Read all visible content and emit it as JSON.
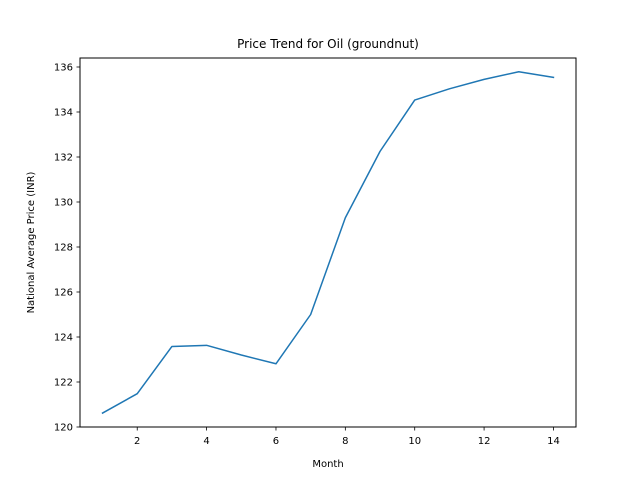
{
  "chart_data": {
    "type": "line",
    "title": "Price Trend for Oil (groundnut)",
    "xlabel": "Month",
    "ylabel": "National Average Price (INR)",
    "x": [
      1,
      2,
      3,
      4,
      5,
      6,
      7,
      8,
      9,
      10,
      11,
      12,
      13,
      14
    ],
    "series": [
      {
        "values": [
          120.62,
          121.48,
          123.58,
          123.63,
          123.2,
          122.81,
          125.0,
          129.3,
          132.25,
          134.53,
          135.03,
          135.45,
          135.79,
          135.54
        ],
        "color": "#1f77b4"
      }
    ],
    "xlim": [
      0.35,
      14.65
    ],
    "ylim": [
      120.0,
      136.4
    ],
    "xticks": [
      2,
      4,
      6,
      8,
      10,
      12,
      14
    ],
    "yticks": [
      120,
      122,
      124,
      126,
      128,
      130,
      132,
      134,
      136
    ],
    "grid": false,
    "legend": "none"
  }
}
